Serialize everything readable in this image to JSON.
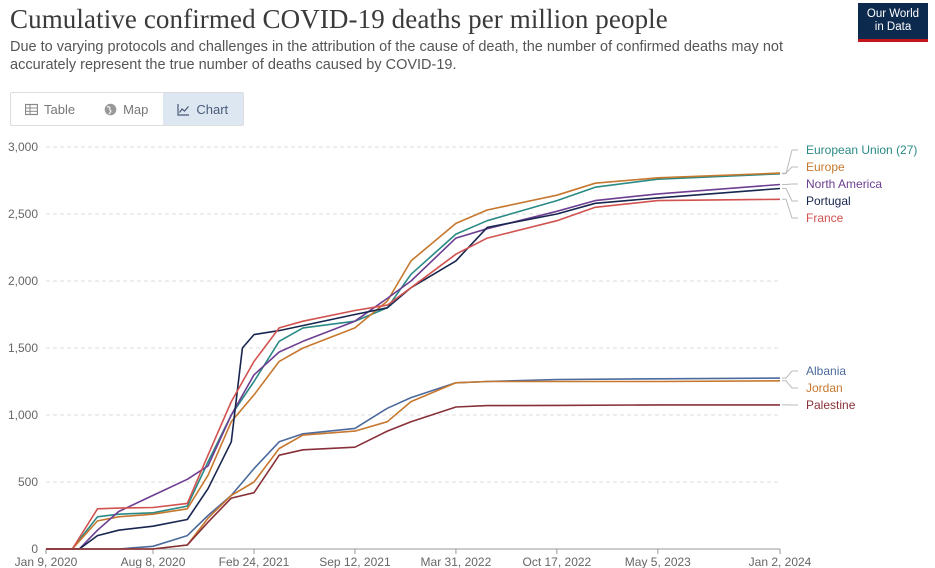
{
  "title": "Cumulative confirmed COVID-19 deaths per million people",
  "subtitle": "Due to varying protocols and challenges in the attribution of the cause of death, the number of confirmed deaths may not accurately represent the true number of deaths caused by COVID-19.",
  "logo": {
    "line1": "Our World",
    "line2": "in Data"
  },
  "tabs": [
    {
      "label": "Table",
      "icon": "table-icon"
    },
    {
      "label": "Map",
      "icon": "globe-icon"
    },
    {
      "label": "Chart",
      "icon": "line-chart-icon",
      "active": true
    }
  ],
  "chart_data": {
    "type": "line",
    "title": "Cumulative confirmed COVID-19 deaths per million people",
    "ylim": [
      0,
      3000
    ],
    "y_ticks": [
      0,
      500,
      1000,
      1500,
      2000,
      2500,
      3000
    ],
    "y_tick_labels": [
      "0",
      "500",
      "1,000",
      "1,500",
      "2,000",
      "2,500",
      "3,000"
    ],
    "x_range": [
      "2020-01-09",
      "2024-01-02"
    ],
    "x_ticks": [
      "2020-01-09",
      "2020-08-08",
      "2021-02-24",
      "2021-09-12",
      "2022-03-31",
      "2022-10-17",
      "2023-05-05",
      "2024-01-02"
    ],
    "x_tick_labels": [
      "Jan 9, 2020",
      "Aug 8, 2020",
      "Feb 24, 2021",
      "Sep 12, 2021",
      "Mar 31, 2022",
      "Oct 17, 2022",
      "May 5, 2023",
      "Jan 2, 2024"
    ],
    "grid": true,
    "legend_position": "right",
    "series": [
      {
        "name": "European Union (27)",
        "color": "#2a8a85",
        "points": [
          [
            "2020-01-09",
            0
          ],
          [
            "2020-03-01",
            0
          ],
          [
            "2020-04-20",
            240
          ],
          [
            "2020-06-01",
            260
          ],
          [
            "2020-08-08",
            270
          ],
          [
            "2020-10-15",
            320
          ],
          [
            "2020-11-25",
            650
          ],
          [
            "2021-01-10",
            1000
          ],
          [
            "2021-02-24",
            1250
          ],
          [
            "2021-04-15",
            1550
          ],
          [
            "2021-06-01",
            1650
          ],
          [
            "2021-09-12",
            1700
          ],
          [
            "2021-11-15",
            1800
          ],
          [
            "2022-01-01",
            2050
          ],
          [
            "2022-03-31",
            2350
          ],
          [
            "2022-06-01",
            2450
          ],
          [
            "2022-10-17",
            2600
          ],
          [
            "2023-01-01",
            2700
          ],
          [
            "2023-05-05",
            2760
          ],
          [
            "2024-01-02",
            2800
          ]
        ]
      },
      {
        "name": "Europe",
        "color": "#c7782f",
        "points": [
          [
            "2020-01-09",
            0
          ],
          [
            "2020-03-01",
            0
          ],
          [
            "2020-04-20",
            210
          ],
          [
            "2020-06-01",
            240
          ],
          [
            "2020-08-08",
            260
          ],
          [
            "2020-10-15",
            300
          ],
          [
            "2020-11-25",
            550
          ],
          [
            "2021-01-10",
            950
          ],
          [
            "2021-02-24",
            1150
          ],
          [
            "2021-04-15",
            1400
          ],
          [
            "2021-06-01",
            1500
          ],
          [
            "2021-09-12",
            1650
          ],
          [
            "2021-11-15",
            1850
          ],
          [
            "2022-01-01",
            2150
          ],
          [
            "2022-03-31",
            2430
          ],
          [
            "2022-06-01",
            2530
          ],
          [
            "2022-10-17",
            2640
          ],
          [
            "2023-01-01",
            2730
          ],
          [
            "2023-05-05",
            2770
          ],
          [
            "2024-01-02",
            2805
          ]
        ]
      },
      {
        "name": "North America",
        "color": "#6d3e91",
        "points": [
          [
            "2020-01-09",
            0
          ],
          [
            "2020-03-15",
            0
          ],
          [
            "2020-04-20",
            140
          ],
          [
            "2020-06-01",
            280
          ],
          [
            "2020-08-08",
            400
          ],
          [
            "2020-10-15",
            520
          ],
          [
            "2020-11-25",
            620
          ],
          [
            "2021-01-10",
            1000
          ],
          [
            "2021-02-24",
            1300
          ],
          [
            "2021-04-15",
            1470
          ],
          [
            "2021-06-01",
            1550
          ],
          [
            "2021-09-12",
            1700
          ],
          [
            "2021-11-15",
            1870
          ],
          [
            "2022-01-01",
            2000
          ],
          [
            "2022-03-31",
            2320
          ],
          [
            "2022-06-01",
            2390
          ],
          [
            "2022-10-17",
            2520
          ],
          [
            "2023-01-01",
            2600
          ],
          [
            "2023-05-05",
            2650
          ],
          [
            "2024-01-02",
            2720
          ]
        ]
      },
      {
        "name": "Portugal",
        "color": "#18264f",
        "points": [
          [
            "2020-01-09",
            0
          ],
          [
            "2020-03-15",
            0
          ],
          [
            "2020-04-20",
            100
          ],
          [
            "2020-06-01",
            140
          ],
          [
            "2020-08-08",
            170
          ],
          [
            "2020-10-15",
            220
          ],
          [
            "2020-11-25",
            450
          ],
          [
            "2021-01-10",
            800
          ],
          [
            "2021-02-01",
            1500
          ],
          [
            "2021-02-24",
            1600
          ],
          [
            "2021-04-15",
            1630
          ],
          [
            "2021-09-12",
            1750
          ],
          [
            "2021-11-15",
            1800
          ],
          [
            "2022-01-01",
            1950
          ],
          [
            "2022-03-31",
            2150
          ],
          [
            "2022-06-01",
            2400
          ],
          [
            "2022-10-17",
            2500
          ],
          [
            "2023-01-01",
            2580
          ],
          [
            "2023-05-05",
            2620
          ],
          [
            "2024-01-02",
            2690
          ]
        ]
      },
      {
        "name": "France",
        "color": "#d1524f",
        "points": [
          [
            "2020-01-09",
            0
          ],
          [
            "2020-03-01",
            0
          ],
          [
            "2020-04-20",
            300
          ],
          [
            "2020-06-01",
            305
          ],
          [
            "2020-08-08",
            310
          ],
          [
            "2020-10-15",
            340
          ],
          [
            "2020-11-25",
            700
          ],
          [
            "2021-01-10",
            1100
          ],
          [
            "2021-02-24",
            1400
          ],
          [
            "2021-04-15",
            1650
          ],
          [
            "2021-06-01",
            1700
          ],
          [
            "2021-09-12",
            1780
          ],
          [
            "2021-11-15",
            1820
          ],
          [
            "2022-01-01",
            1950
          ],
          [
            "2022-03-31",
            2200
          ],
          [
            "2022-06-01",
            2320
          ],
          [
            "2022-10-17",
            2450
          ],
          [
            "2023-01-01",
            2550
          ],
          [
            "2023-05-05",
            2600
          ],
          [
            "2024-01-02",
            2610
          ]
        ]
      },
      {
        "name": "Albania",
        "color": "#4c6a9c",
        "points": [
          [
            "2020-01-09",
            0
          ],
          [
            "2020-06-01",
            0
          ],
          [
            "2020-08-08",
            20
          ],
          [
            "2020-10-15",
            100
          ],
          [
            "2020-11-25",
            250
          ],
          [
            "2021-01-10",
            400
          ],
          [
            "2021-02-24",
            600
          ],
          [
            "2021-04-15",
            800
          ],
          [
            "2021-06-01",
            860
          ],
          [
            "2021-09-12",
            900
          ],
          [
            "2021-11-15",
            1050
          ],
          [
            "2022-01-01",
            1130
          ],
          [
            "2022-03-31",
            1240
          ],
          [
            "2022-06-01",
            1250
          ],
          [
            "2022-10-17",
            1265
          ],
          [
            "2023-05-05",
            1270
          ],
          [
            "2024-01-02",
            1275
          ]
        ]
      },
      {
        "name": "Jordan",
        "color": "#c7782f",
        "points": [
          [
            "2020-01-09",
            0
          ],
          [
            "2020-08-08",
            0
          ],
          [
            "2020-10-15",
            30
          ],
          [
            "2020-11-25",
            230
          ],
          [
            "2021-01-10",
            400
          ],
          [
            "2021-02-24",
            500
          ],
          [
            "2021-04-15",
            750
          ],
          [
            "2021-06-01",
            850
          ],
          [
            "2021-09-12",
            880
          ],
          [
            "2021-11-15",
            950
          ],
          [
            "2022-01-01",
            1100
          ],
          [
            "2022-03-31",
            1240
          ],
          [
            "2022-06-01",
            1250
          ],
          [
            "2022-10-17",
            1250
          ],
          [
            "2023-05-05",
            1250
          ],
          [
            "2024-01-02",
            1255
          ]
        ]
      },
      {
        "name": "Palestine",
        "color": "#883039",
        "points": [
          [
            "2020-01-09",
            0
          ],
          [
            "2020-08-08",
            0
          ],
          [
            "2020-10-15",
            30
          ],
          [
            "2020-11-25",
            200
          ],
          [
            "2021-01-10",
            380
          ],
          [
            "2021-02-24",
            420
          ],
          [
            "2021-04-15",
            700
          ],
          [
            "2021-06-01",
            740
          ],
          [
            "2021-09-12",
            760
          ],
          [
            "2021-11-15",
            880
          ],
          [
            "2022-01-01",
            950
          ],
          [
            "2022-03-31",
            1060
          ],
          [
            "2022-06-01",
            1070
          ],
          [
            "2022-10-17",
            1072
          ],
          [
            "2023-05-05",
            1075
          ],
          [
            "2024-01-02",
            1075
          ]
        ]
      }
    ]
  },
  "colors": {
    "axis_text": "#666666",
    "grid": "#dddddd",
    "title": "#3a3a3a",
    "logo_bg": "#0b2a4e",
    "logo_bar": "#c4151c"
  }
}
